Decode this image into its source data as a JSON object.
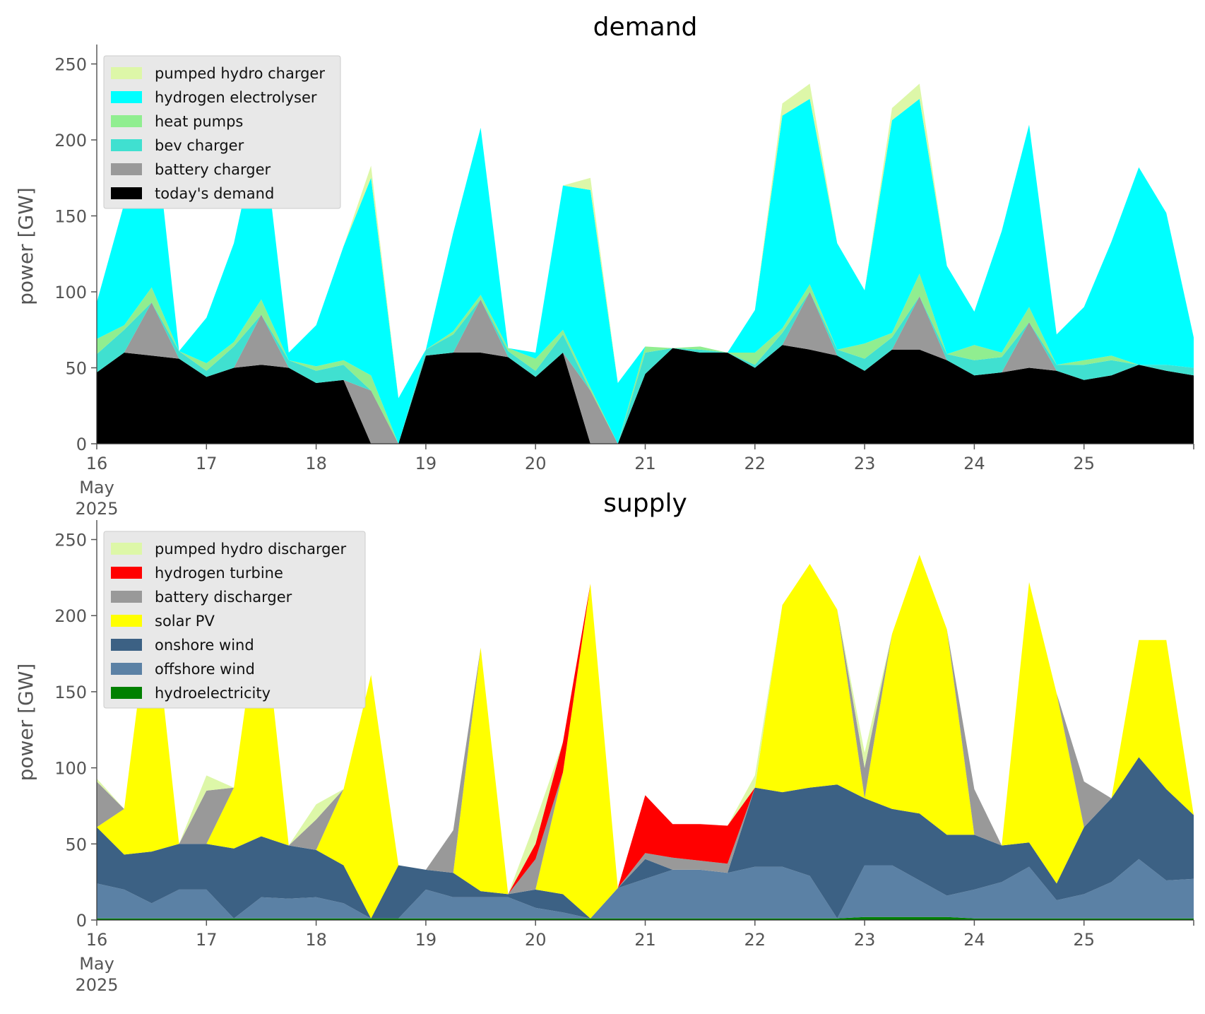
{
  "date_label": {
    "month": "May",
    "year": "2025"
  },
  "chart_data": [
    {
      "type": "area",
      "title": "demand",
      "ylabel": "power [GW]",
      "xlabel": "",
      "ylim": [
        0,
        260
      ],
      "xlim": [
        16.0,
        26.0
      ],
      "x_ticks": [
        16,
        17,
        18,
        19,
        20,
        21,
        22,
        23,
        24,
        25
      ],
      "x_tick_labels": [
        "16",
        "17",
        "18",
        "19",
        "20",
        "21",
        "22",
        "23",
        "24",
        "25"
      ],
      "y_ticks": [
        0,
        50,
        100,
        150,
        200,
        250
      ],
      "y_tick_labels": [
        "0",
        "50",
        "100",
        "150",
        "200",
        "250"
      ],
      "grid": false,
      "legend_position": "top-left",
      "legend_order": [
        "pumped hydro charger",
        "hydrogen electrolyser",
        "heat pumps",
        "bev charger",
        "battery charger",
        "today's demand"
      ],
      "x": [
        16.0,
        16.25,
        16.5,
        16.75,
        17.0,
        17.25,
        17.5,
        17.75,
        18.0,
        18.25,
        18.5,
        18.75,
        19.0,
        19.25,
        19.5,
        19.75,
        20.0,
        20.25,
        20.5,
        20.75,
        21.0,
        21.25,
        21.5,
        21.75,
        22.0,
        22.25,
        22.5,
        22.75,
        23.0,
        23.25,
        23.5,
        23.75,
        24.0,
        24.25,
        24.5,
        24.75,
        25.0,
        25.25,
        25.5,
        25.75,
        26.0
      ],
      "series": [
        {
          "name": "today's demand",
          "color": "#000000",
          "values": [
            47,
            60,
            58,
            56,
            44,
            50,
            52,
            50,
            40,
            42,
            0,
            0,
            58,
            60,
            60,
            57,
            44,
            60,
            0,
            0,
            46,
            63,
            60,
            60,
            50,
            65,
            62,
            58,
            48,
            62,
            62,
            55,
            45,
            47,
            50,
            48,
            42,
            45,
            52,
            48,
            45
          ]
        },
        {
          "name": "battery charger",
          "color": "#999999",
          "values": [
            0,
            0,
            35,
            0,
            0,
            0,
            33,
            0,
            0,
            0,
            35,
            0,
            0,
            0,
            35,
            0,
            0,
            0,
            35,
            0,
            0,
            0,
            0,
            0,
            0,
            0,
            38,
            0,
            0,
            0,
            35,
            0,
            0,
            0,
            30,
            0,
            0,
            0,
            0,
            0,
            0
          ]
        },
        {
          "name": "bev charger",
          "color": "#40e0d0",
          "values": [
            12,
            15,
            0,
            5,
            4,
            14,
            0,
            5,
            8,
            10,
            0,
            0,
            4,
            12,
            0,
            4,
            4,
            12,
            0,
            0,
            14,
            0,
            2,
            0,
            2,
            8,
            0,
            4,
            8,
            8,
            0,
            4,
            10,
            10,
            0,
            4,
            10,
            10,
            0,
            4,
            5
          ]
        },
        {
          "name": "heat pumps",
          "color": "#90ee90",
          "values": [
            10,
            3,
            10,
            0,
            5,
            3,
            10,
            0,
            3,
            3,
            10,
            0,
            0,
            2,
            3,
            2,
            8,
            3,
            2,
            0,
            4,
            0,
            2,
            0,
            8,
            3,
            5,
            0,
            10,
            3,
            15,
            0,
            10,
            3,
            10,
            0,
            3,
            3,
            0,
            0,
            0
          ]
        },
        {
          "name": "hydrogen electrolyser",
          "color": "#00ffff",
          "values": [
            24,
            80,
            125,
            0,
            30,
            65,
            120,
            5,
            27,
            75,
            130,
            30,
            0,
            65,
            110,
            0,
            4,
            95,
            130,
            40,
            0,
            0,
            0,
            0,
            28,
            140,
            122,
            70,
            35,
            140,
            115,
            58,
            22,
            80,
            120,
            20,
            35,
            75,
            130,
            100,
            20
          ]
        },
        {
          "name": "pumped hydro charger",
          "color": "#ddf7a8",
          "values": [
            0,
            0,
            0,
            0,
            0,
            0,
            0,
            0,
            0,
            0,
            8,
            0,
            0,
            0,
            0,
            0,
            0,
            0,
            8,
            0,
            0,
            0,
            0,
            0,
            0,
            8,
            10,
            0,
            0,
            8,
            10,
            0,
            0,
            0,
            0,
            0,
            0,
            0,
            0,
            0,
            0
          ]
        }
      ]
    },
    {
      "type": "area",
      "title": "supply",
      "ylabel": "power [GW]",
      "xlabel": "",
      "ylim": [
        0,
        260
      ],
      "xlim": [
        16.0,
        26.0
      ],
      "x_ticks": [
        16,
        17,
        18,
        19,
        20,
        21,
        22,
        23,
        24,
        25
      ],
      "x_tick_labels": [
        "16",
        "17",
        "18",
        "19",
        "20",
        "21",
        "22",
        "23",
        "24",
        "25"
      ],
      "y_ticks": [
        0,
        50,
        100,
        150,
        200,
        250
      ],
      "y_tick_labels": [
        "0",
        "50",
        "100",
        "150",
        "200",
        "250"
      ],
      "grid": false,
      "legend_position": "top-left",
      "legend_order": [
        "pumped hydro discharger",
        "hydrogen turbine",
        "battery discharger",
        "solar PV",
        "onshore wind",
        "offshore wind",
        "hydroelectricity"
      ],
      "x": [
        16.0,
        16.25,
        16.5,
        16.75,
        17.0,
        17.25,
        17.5,
        17.75,
        18.0,
        18.25,
        18.5,
        18.75,
        19.0,
        19.25,
        19.5,
        19.75,
        20.0,
        20.25,
        20.5,
        20.75,
        21.0,
        21.25,
        21.5,
        21.75,
        22.0,
        22.25,
        22.5,
        22.75,
        23.0,
        23.25,
        23.5,
        23.75,
        24.0,
        24.25,
        24.5,
        24.75,
        25.0,
        25.25,
        25.5,
        25.75,
        26.0
      ],
      "series": [
        {
          "name": "hydroelectricity",
          "color": "#008000",
          "values": [
            1,
            1,
            1,
            1,
            1,
            1,
            1,
            1,
            1,
            1,
            1,
            1,
            1,
            1,
            1,
            1,
            1,
            1,
            1,
            1,
            1,
            1,
            1,
            1,
            1,
            1,
            1,
            1,
            2,
            2,
            2,
            2,
            1,
            1,
            1,
            1,
            1,
            1,
            1,
            1,
            1
          ]
        },
        {
          "name": "offshore wind",
          "color": "#5b81a5",
          "values": [
            23,
            19,
            10,
            19,
            19,
            0,
            14,
            13,
            14,
            10,
            0,
            0,
            19,
            14,
            14,
            14,
            7,
            4,
            0,
            20,
            26,
            32,
            32,
            30,
            34,
            34,
            28,
            0,
            34,
            34,
            24,
            14,
            19,
            24,
            34,
            12,
            16,
            24,
            39,
            25,
            26
          ]
        },
        {
          "name": "onshore wind",
          "color": "#3c6184",
          "values": [
            37,
            23,
            34,
            30,
            30,
            46,
            40,
            35,
            31,
            25,
            0,
            35,
            13,
            16,
            4,
            2,
            12,
            12,
            0,
            0,
            13,
            0,
            0,
            0,
            52,
            49,
            58,
            88,
            44,
            37,
            44,
            40,
            36,
            24,
            16,
            11,
            44,
            55,
            67,
            60,
            42
          ]
        },
        {
          "name": "solar PV",
          "color": "#ffff00",
          "values": [
            0,
            30,
            170,
            0,
            0,
            40,
            160,
            0,
            0,
            50,
            160,
            0,
            0,
            0,
            160,
            0,
            0,
            80,
            220,
            0,
            0,
            0,
            0,
            0,
            0,
            123,
            147,
            115,
            0,
            115,
            170,
            135,
            0,
            0,
            171,
            125,
            0,
            0,
            77,
            98,
            0
          ]
        },
        {
          "name": "battery discharger",
          "color": "#999999",
          "values": [
            30,
            0,
            0,
            0,
            35,
            0,
            0,
            0,
            20,
            0,
            0,
            0,
            0,
            28,
            0,
            0,
            20,
            0,
            0,
            0,
            4,
            8,
            6,
            6,
            0,
            0,
            0,
            0,
            20,
            0,
            0,
            0,
            30,
            0,
            0,
            0,
            30,
            0,
            0,
            0,
            0
          ]
        },
        {
          "name": "hydrogen turbine",
          "color": "#ff0000",
          "values": [
            0,
            0,
            0,
            0,
            0,
            0,
            0,
            0,
            0,
            0,
            0,
            0,
            0,
            0,
            0,
            0,
            10,
            20,
            0,
            0,
            38,
            22,
            24,
            25,
            0,
            0,
            0,
            0,
            0,
            0,
            0,
            0,
            0,
            0,
            0,
            0,
            0,
            0,
            0,
            0,
            0
          ]
        },
        {
          "name": "pumped hydro discharger",
          "color": "#ddf7a8",
          "values": [
            2,
            0,
            0,
            0,
            10,
            0,
            0,
            0,
            10,
            0,
            0,
            0,
            0,
            0,
            0,
            0,
            15,
            0,
            0,
            0,
            0,
            0,
            0,
            0,
            8,
            0,
            0,
            0,
            10,
            0,
            0,
            0,
            0,
            0,
            0,
            0,
            0,
            0,
            0,
            0,
            0
          ]
        }
      ]
    }
  ]
}
